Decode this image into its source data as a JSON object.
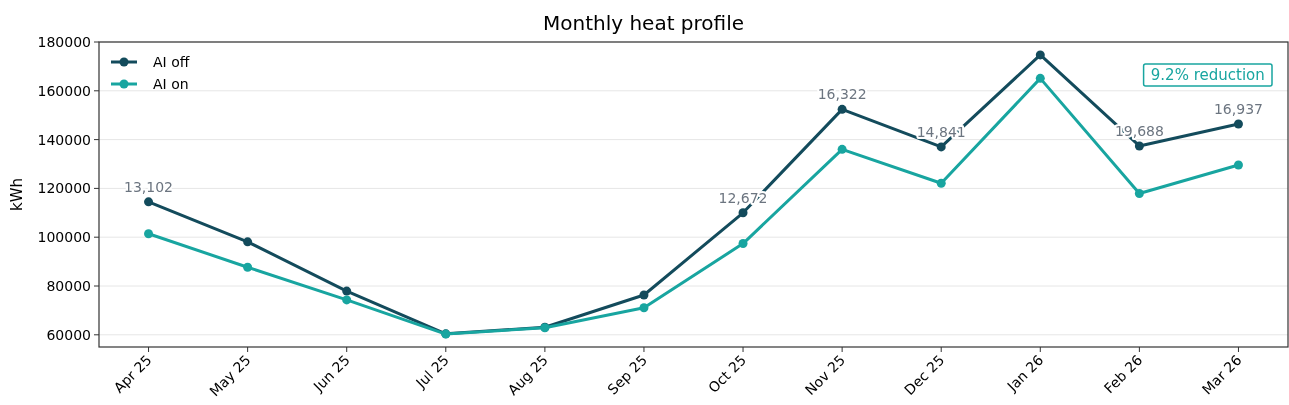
{
  "chart_data": {
    "type": "line",
    "title": "Monthly heat profile",
    "ylabel": "kWh",
    "categories": [
      "Apr 25",
      "May 25",
      "Jun 25",
      "Jul 25",
      "Aug 25",
      "Sep 25",
      "Oct 25",
      "Nov 25",
      "Dec 25",
      "Jan 26",
      "Feb 26",
      "Mar 26"
    ],
    "series": [
      {
        "name": "AI off",
        "color": "#134b5c",
        "values": [
          114500,
          98100,
          77900,
          60400,
          63100,
          76300,
          110000,
          152400,
          137000,
          174700,
          137400,
          146400
        ]
      },
      {
        "name": "AI on",
        "color": "#18a5a0",
        "values": [
          101400,
          87700,
          74300,
          60300,
          62900,
          71100,
          97400,
          136000,
          122100,
          165100,
          117900,
          129600
        ]
      }
    ],
    "ylim": [
      55000,
      180000
    ],
    "yticks": [
      60000,
      80000,
      100000,
      120000,
      140000,
      160000,
      180000
    ],
    "grid": "y",
    "legend": "top left",
    "marker": "circle",
    "line_style": "solid",
    "annotations": [
      {
        "text": "13,102",
        "x": "Apr 25",
        "y": 114500
      },
      {
        "text": "12,672",
        "x": "Oct 25",
        "y": 110000
      },
      {
        "text": "16,322",
        "x": "Nov 25",
        "y": 152400
      },
      {
        "text": "14,841",
        "x": "Dec 25",
        "y": 137000
      },
      {
        "text": "19,688",
        "x": "Feb 26",
        "y": 137400
      },
      {
        "text": "16,937",
        "x": "Mar 26",
        "y": 146400
      },
      "9.2% reduction"
    ]
  }
}
